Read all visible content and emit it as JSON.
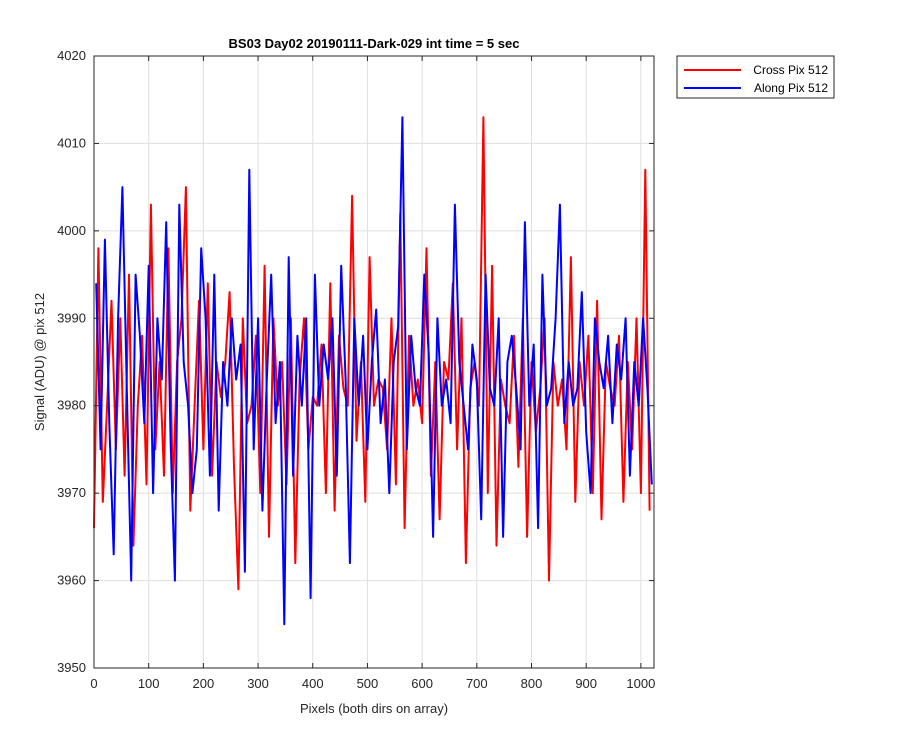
{
  "chart_data": {
    "type": "line",
    "title": "BS03 Day02 20190111-Dark-029 int time = 5 sec",
    "xlabel": "Pixels (both dirs on array)",
    "ylabel": "Signal (ADU) @ pix 512",
    "xlim": [
      0,
      1024
    ],
    "ylim": [
      3950,
      4020
    ],
    "xticks": [
      0,
      100,
      200,
      300,
      400,
      500,
      600,
      700,
      800,
      900,
      1000
    ],
    "yticks": [
      3950,
      3960,
      3970,
      3980,
      3990,
      4000,
      4010,
      4020
    ],
    "grid": true,
    "legend_position": "outside-top-right",
    "series": [
      {
        "name": "Cross Pix 512",
        "color": "#ff0000",
        "x_start": 0,
        "x_step": 8,
        "values": [
          3966,
          3998,
          3969,
          3980,
          3992,
          3975,
          3990,
          3972,
          3995,
          3964,
          3980,
          3988,
          3971,
          4003,
          3975,
          3985,
          3972,
          3998,
          3970,
          3985,
          3990,
          4005,
          3968,
          3980,
          3992,
          3975,
          3994,
          3972,
          3985,
          3981,
          3985,
          3993,
          3973,
          3959,
          3990,
          3978,
          3980,
          3988,
          3970,
          3996,
          3965,
          3990,
          3980,
          3985,
          3971,
          3990,
          3962,
          3983,
          3990,
          3975,
          3981,
          3980,
          3987,
          3970,
          3994,
          3968,
          3988,
          3982,
          3980,
          4004,
          3976,
          3985,
          3969,
          3997,
          3980,
          3983,
          3982,
          3975,
          3990,
          3971,
          4002,
          3966,
          3988,
          3980,
          3983,
          3978,
          3998,
          3972,
          3985,
          3967,
          3985,
          3983,
          3994,
          3975,
          3990,
          3962,
          3982,
          3985,
          3980,
          4013,
          3970,
          3996,
          3964,
          3983,
          3980,
          3978,
          3988,
          3973,
          3990,
          3965,
          3985,
          3977,
          3982,
          3990,
          3960,
          3985,
          3980,
          3983,
          3975,
          3997,
          3969,
          3985,
          3980,
          3988,
          3970,
          3992,
          3967,
          3985,
          3982,
          3980,
          3988,
          3969,
          3985,
          3975,
          3990,
          3970,
          4007,
          3968
        ]
      },
      {
        "name": "Along Pix 512",
        "color": "#0000ff",
        "x_start": 4,
        "x_step": 8,
        "values": [
          3994,
          3975,
          3999,
          3978,
          3963,
          3990,
          4005,
          3982,
          3960,
          3995,
          3988,
          3978,
          3996,
          3970,
          3990,
          3983,
          4001,
          3976,
          3960,
          4003,
          3985,
          3980,
          3970,
          3975,
          3998,
          3990,
          3972,
          3995,
          3968,
          3985,
          3980,
          3990,
          3983,
          3987,
          3961,
          4007,
          3975,
          3990,
          3968,
          3983,
          3995,
          3978,
          3985,
          3955,
          3997,
          3972,
          3988,
          3980,
          3990,
          3958,
          3995,
          3980,
          3987,
          3983,
          3990,
          3972,
          3996,
          3983,
          3962,
          3990,
          3980,
          3988,
          3975,
          3985,
          3991,
          3978,
          3983,
          3970,
          3985,
          3989,
          4013,
          3975,
          3988,
          3982,
          3980,
          3995,
          3986,
          3965,
          3990,
          3980,
          3983,
          3978,
          4003,
          3985,
          3980,
          3975,
          3987,
          3983,
          3967,
          3995,
          3982,
          3980,
          3990,
          3965,
          3985,
          3988,
          3982,
          3975,
          4001,
          3980,
          3987,
          3966,
          3995,
          3980,
          3982,
          3990,
          4003,
          3978,
          3985,
          3980,
          3982,
          3993,
          3977,
          3970,
          3990,
          3985,
          3982,
          3988,
          3978,
          3987,
          3983,
          3990,
          3972,
          3985,
          3980,
          3990,
          3982,
          3971
        ]
      }
    ]
  }
}
